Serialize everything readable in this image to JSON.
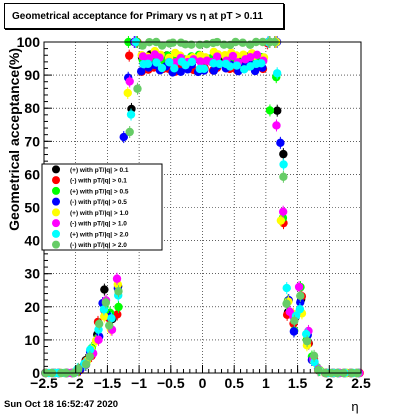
{
  "title": "Geometrical acceptance for Primary vs   η at pT > 0.11",
  "footer": {
    "date": "Sun Oct 18 16:52:47 2020"
  },
  "chart_data": {
    "type": "scatter",
    "title": "Geometrical acceptance for Primary vs   η at pT > 0.11",
    "xlabel": "η",
    "ylabel": "Geometrical acceptance(%)",
    "xlim": [
      -2.5,
      2.5
    ],
    "ylim": [
      0,
      100
    ],
    "xticks": [
      "−2.5",
      "−2",
      "−1.5",
      "−1",
      "−0.5",
      "0",
      "0.5",
      "1",
      "1.5",
      "2",
      "2.5"
    ],
    "yticks": [
      "0",
      "10",
      "20",
      "30",
      "40",
      "50",
      "60",
      "70",
      "80",
      "90",
      "100"
    ],
    "grid": true,
    "legend_position": "middle-left",
    "series": [
      {
        "name": "(+) with pT/|q| > 0.1",
        "color": "#000000",
        "plateau": 95
      },
      {
        "name": "(-) with pT/|q| > 0.1",
        "color": "#ff0000",
        "plateau": 92
      },
      {
        "name": "(+) with pT/|q| > 0.5",
        "color": "#00ff00",
        "plateau": 95
      },
      {
        "name": "(-) with pT/|q| > 0.5",
        "color": "#0000ff",
        "plateau": 92
      },
      {
        "name": "(+) with pT/|q| > 1.0",
        "color": "#ffff00",
        "plateau": 96
      },
      {
        "name": "(-) with pT/|q| > 1.0",
        "color": "#ff00ff",
        "plateau": 95
      },
      {
        "name": "(+) with pT/|q| > 2.0",
        "color": "#00ffff",
        "plateau": 93
      },
      {
        "name": "(-) with pT/|q| > 2.0",
        "color": "#66cc66",
        "plateau": 100
      }
    ],
    "x": [
      -2.45,
      -2.35,
      -2.25,
      -2.15,
      -2.05,
      -1.95,
      -1.85,
      -1.75,
      -1.65,
      -1.55,
      -1.45,
      -1.35,
      -1.25,
      -1.15,
      -1.05,
      -0.95,
      -0.85,
      -0.75,
      -0.65,
      -0.55,
      -0.45,
      -0.35,
      -0.25,
      -0.15,
      -0.05,
      0.05,
      0.15,
      0.25,
      0.35,
      0.45,
      0.55,
      0.65,
      0.75,
      0.85,
      0.95,
      1.05,
      1.15,
      1.25,
      1.35,
      1.45,
      1.55,
      1.65,
      1.75,
      1.85,
      1.95,
      2.05,
      2.15,
      2.25,
      2.35,
      2.45
    ],
    "profile": [
      0,
      0,
      0,
      0,
      0,
      1,
      3,
      6,
      12,
      20,
      14,
      22,
      55,
      85,
      98,
      100,
      100,
      100,
      100,
      100,
      100,
      100,
      100,
      100,
      100,
      100,
      100,
      100,
      100,
      100,
      100,
      100,
      100,
      100,
      100,
      98,
      85,
      55,
      20,
      14,
      20,
      10,
      4,
      1,
      0,
      0,
      0,
      0,
      0,
      0
    ]
  }
}
